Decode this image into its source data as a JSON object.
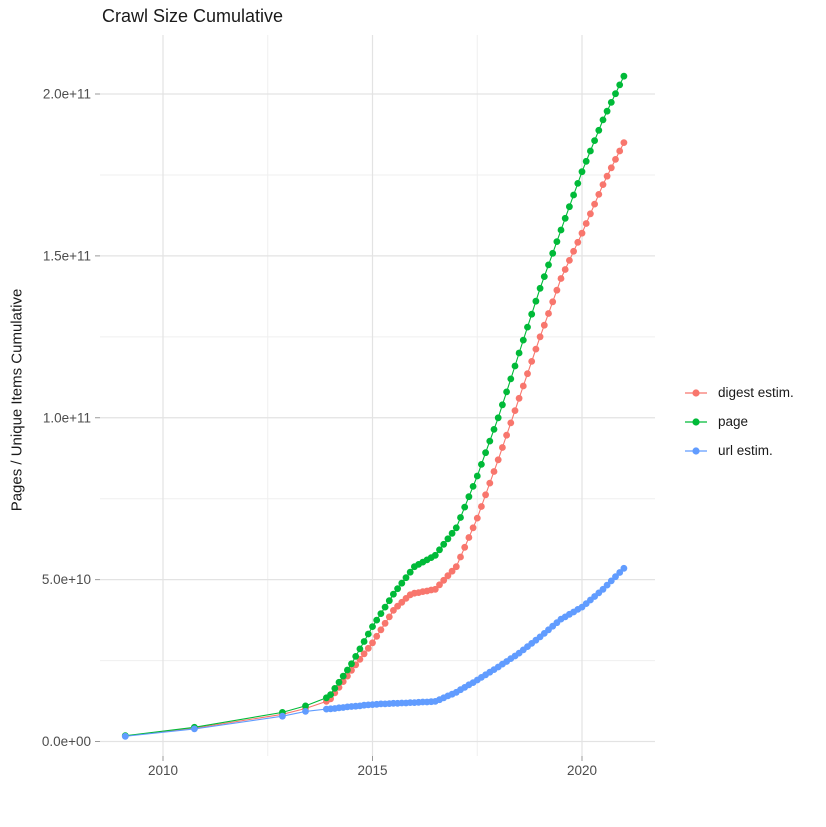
{
  "page": {
    "title": "Crawl Size Cumulative"
  },
  "chart_data": {
    "type": "line",
    "title": "Crawl Size Cumulative",
    "xlabel": "",
    "ylabel": "Pages / Unique Items Cumulative",
    "value_unit": "items, values in billions (1e9)",
    "xlim": [
      2008.5,
      2021.75
    ],
    "ylim_e9": [
      -4.5,
      218
    ],
    "grid": true,
    "legend_position": "right",
    "colors": {
      "background": "#ffffff",
      "grid_major": "#e3e3e3",
      "grid_minor": "#efefef",
      "tick": "#999999",
      "tick_label": "#4d4d4d",
      "text": "#1a1a1a"
    },
    "xticks": {
      "major": [
        {
          "v": 2010,
          "label": "2010"
        },
        {
          "v": 2015,
          "label": "2015"
        },
        {
          "v": 2020,
          "label": "2020"
        }
      ],
      "minor": [
        2012.5,
        2017.5
      ]
    },
    "yticks": {
      "major": [
        {
          "v": 0,
          "label": "0.0e+00"
        },
        {
          "v": 50,
          "label": "5.0e+10"
        },
        {
          "v": 100,
          "label": "1.0e+11"
        },
        {
          "v": 150,
          "label": "1.5e+11"
        },
        {
          "v": 200,
          "label": "2.0e+11"
        }
      ],
      "minor": [
        25,
        75,
        125,
        175
      ]
    },
    "series": [
      {
        "name": "digest estim.",
        "color": "#F8766D",
        "points": [
          [
            2009.1,
            1.7
          ],
          [
            2010.75,
            4.1
          ],
          [
            2012.85,
            8.4
          ],
          [
            2013.4,
            10.2
          ],
          [
            2013.9,
            12.4
          ],
          [
            2014.0,
            13.2
          ],
          [
            2014.1,
            15.0
          ],
          [
            2014.2,
            16.7
          ],
          [
            2014.3,
            18.5
          ],
          [
            2014.4,
            20.2
          ],
          [
            2014.5,
            22.0
          ],
          [
            2014.6,
            23.7
          ],
          [
            2014.7,
            25.4
          ],
          [
            2014.8,
            27.1
          ],
          [
            2014.9,
            28.8
          ],
          [
            2015.0,
            30.5
          ],
          [
            2015.1,
            32.5
          ],
          [
            2015.2,
            34.5
          ],
          [
            2015.3,
            36.5
          ],
          [
            2015.4,
            38.5
          ],
          [
            2015.5,
            40.5
          ],
          [
            2015.6,
            41.8
          ],
          [
            2015.7,
            43.0
          ],
          [
            2015.8,
            44.2
          ],
          [
            2015.9,
            45.3
          ],
          [
            2016.0,
            45.8
          ],
          [
            2016.1,
            46.0
          ],
          [
            2016.2,
            46.3
          ],
          [
            2016.3,
            46.5
          ],
          [
            2016.4,
            46.8
          ],
          [
            2016.5,
            47.0
          ],
          [
            2016.6,
            48.4
          ],
          [
            2016.7,
            49.8
          ],
          [
            2016.8,
            51.2
          ],
          [
            2016.9,
            52.6
          ],
          [
            2017.0,
            54.0
          ],
          [
            2017.1,
            57.0
          ],
          [
            2017.2,
            60.0
          ],
          [
            2017.3,
            63.0
          ],
          [
            2017.4,
            66.0
          ],
          [
            2017.5,
            69.0
          ],
          [
            2017.6,
            72.6
          ],
          [
            2017.7,
            76.2
          ],
          [
            2017.8,
            79.8
          ],
          [
            2017.9,
            83.4
          ],
          [
            2018.0,
            87.0
          ],
          [
            2018.1,
            90.8
          ],
          [
            2018.2,
            94.6
          ],
          [
            2018.3,
            98.4
          ],
          [
            2018.4,
            102.2
          ],
          [
            2018.5,
            106.0
          ],
          [
            2018.6,
            109.8
          ],
          [
            2018.7,
            113.6
          ],
          [
            2018.8,
            117.4
          ],
          [
            2018.9,
            121.2
          ],
          [
            2019.0,
            125.0
          ],
          [
            2019.1,
            128.6
          ],
          [
            2019.2,
            132.2
          ],
          [
            2019.3,
            135.8
          ],
          [
            2019.4,
            139.4
          ],
          [
            2019.5,
            143.0
          ],
          [
            2019.6,
            145.8
          ],
          [
            2019.7,
            148.6
          ],
          [
            2019.8,
            151.4
          ],
          [
            2019.9,
            154.2
          ],
          [
            2020.0,
            157.0
          ],
          [
            2020.1,
            160.0
          ],
          [
            2020.2,
            163.0
          ],
          [
            2020.3,
            166.0
          ],
          [
            2020.4,
            169.0
          ],
          [
            2020.5,
            172.0
          ],
          [
            2020.6,
            174.6
          ],
          [
            2020.7,
            177.2
          ],
          [
            2020.8,
            179.8
          ],
          [
            2020.9,
            182.4
          ],
          [
            2021.0,
            185.0
          ]
        ]
      },
      {
        "name": "page",
        "color": "#00BA38",
        "points": [
          [
            2009.1,
            1.8
          ],
          [
            2010.75,
            4.4
          ],
          [
            2012.85,
            9.0
          ],
          [
            2013.4,
            11.0
          ],
          [
            2013.9,
            13.5
          ],
          [
            2014.0,
            14.5
          ],
          [
            2014.1,
            16.4
          ],
          [
            2014.2,
            18.3
          ],
          [
            2014.3,
            20.2
          ],
          [
            2014.4,
            22.1
          ],
          [
            2014.5,
            24.0
          ],
          [
            2014.6,
            26.3
          ],
          [
            2014.7,
            28.6
          ],
          [
            2014.8,
            30.9
          ],
          [
            2014.9,
            33.2
          ],
          [
            2015.0,
            35.5
          ],
          [
            2015.1,
            37.5
          ],
          [
            2015.2,
            39.5
          ],
          [
            2015.3,
            41.5
          ],
          [
            2015.4,
            43.5
          ],
          [
            2015.5,
            45.5
          ],
          [
            2015.6,
            47.2
          ],
          [
            2015.7,
            48.9
          ],
          [
            2015.8,
            50.6
          ],
          [
            2015.9,
            52.3
          ],
          [
            2016.0,
            54.0
          ],
          [
            2016.1,
            54.7
          ],
          [
            2016.2,
            55.4
          ],
          [
            2016.3,
            56.1
          ],
          [
            2016.4,
            56.8
          ],
          [
            2016.5,
            57.5
          ],
          [
            2016.6,
            59.2
          ],
          [
            2016.7,
            60.9
          ],
          [
            2016.8,
            62.6
          ],
          [
            2016.9,
            64.3
          ],
          [
            2017.0,
            66.0
          ],
          [
            2017.1,
            69.2
          ],
          [
            2017.2,
            72.4
          ],
          [
            2017.3,
            75.6
          ],
          [
            2017.4,
            78.8
          ],
          [
            2017.5,
            82.0
          ],
          [
            2017.6,
            85.6
          ],
          [
            2017.7,
            89.2
          ],
          [
            2017.8,
            92.8
          ],
          [
            2017.9,
            96.4
          ],
          [
            2018.0,
            100.0
          ],
          [
            2018.1,
            104.0
          ],
          [
            2018.2,
            108.0
          ],
          [
            2018.3,
            112.0
          ],
          [
            2018.4,
            116.0
          ],
          [
            2018.5,
            120.0
          ],
          [
            2018.6,
            124.0
          ],
          [
            2018.7,
            128.0
          ],
          [
            2018.8,
            132.0
          ],
          [
            2018.9,
            136.0
          ],
          [
            2019.0,
            140.0
          ],
          [
            2019.1,
            143.6
          ],
          [
            2019.2,
            147.2
          ],
          [
            2019.3,
            150.8
          ],
          [
            2019.4,
            154.4
          ],
          [
            2019.5,
            158.0
          ],
          [
            2019.6,
            161.6
          ],
          [
            2019.7,
            165.2
          ],
          [
            2019.8,
            168.8
          ],
          [
            2019.9,
            172.4
          ],
          [
            2020.0,
            176.0
          ],
          [
            2020.1,
            179.2
          ],
          [
            2020.2,
            182.4
          ],
          [
            2020.3,
            185.6
          ],
          [
            2020.4,
            188.8
          ],
          [
            2020.5,
            192.0
          ],
          [
            2020.6,
            194.7
          ],
          [
            2020.7,
            197.4
          ],
          [
            2020.8,
            200.1
          ],
          [
            2020.9,
            202.8
          ],
          [
            2021.0,
            205.5
          ]
        ]
      },
      {
        "name": "url estim.",
        "color": "#619CFF",
        "points": [
          [
            2009.1,
            1.6
          ],
          [
            2010.75,
            3.9
          ],
          [
            2012.85,
            7.8
          ],
          [
            2013.4,
            9.3
          ],
          [
            2013.9,
            10.0
          ],
          [
            2014.0,
            10.1
          ],
          [
            2014.1,
            10.2
          ],
          [
            2014.2,
            10.4
          ],
          [
            2014.3,
            10.5
          ],
          [
            2014.4,
            10.7
          ],
          [
            2014.5,
            10.8
          ],
          [
            2014.6,
            10.9
          ],
          [
            2014.7,
            11.0
          ],
          [
            2014.8,
            11.2
          ],
          [
            2014.9,
            11.3
          ],
          [
            2015.0,
            11.4
          ],
          [
            2015.1,
            11.5
          ],
          [
            2015.2,
            11.6
          ],
          [
            2015.3,
            11.6
          ],
          [
            2015.4,
            11.7
          ],
          [
            2015.5,
            11.8
          ],
          [
            2015.6,
            11.8
          ],
          [
            2015.7,
            11.9
          ],
          [
            2015.8,
            11.9
          ],
          [
            2015.9,
            12.0
          ],
          [
            2016.0,
            12.0
          ],
          [
            2016.1,
            12.1
          ],
          [
            2016.2,
            12.2
          ],
          [
            2016.3,
            12.2
          ],
          [
            2016.4,
            12.3
          ],
          [
            2016.5,
            12.4
          ],
          [
            2016.6,
            12.9
          ],
          [
            2016.7,
            13.5
          ],
          [
            2016.8,
            14.1
          ],
          [
            2016.9,
            14.6
          ],
          [
            2017.0,
            15.2
          ],
          [
            2017.1,
            16.0
          ],
          [
            2017.2,
            16.7
          ],
          [
            2017.3,
            17.5
          ],
          [
            2017.4,
            18.2
          ],
          [
            2017.5,
            19.0
          ],
          [
            2017.6,
            19.8
          ],
          [
            2017.7,
            20.6
          ],
          [
            2017.8,
            21.4
          ],
          [
            2017.9,
            22.2
          ],
          [
            2018.0,
            23.0
          ],
          [
            2018.1,
            23.9
          ],
          [
            2018.2,
            24.7
          ],
          [
            2018.3,
            25.6
          ],
          [
            2018.4,
            26.4
          ],
          [
            2018.5,
            27.3
          ],
          [
            2018.6,
            28.3
          ],
          [
            2018.7,
            29.3
          ],
          [
            2018.8,
            30.3
          ],
          [
            2018.9,
            31.3
          ],
          [
            2019.0,
            32.3
          ],
          [
            2019.1,
            33.4
          ],
          [
            2019.2,
            34.5
          ],
          [
            2019.3,
            35.6
          ],
          [
            2019.4,
            36.7
          ],
          [
            2019.5,
            37.8
          ],
          [
            2019.6,
            38.5
          ],
          [
            2019.7,
            39.3
          ],
          [
            2019.8,
            40.0
          ],
          [
            2019.9,
            40.8
          ],
          [
            2020.0,
            41.5
          ],
          [
            2020.1,
            42.6
          ],
          [
            2020.2,
            43.7
          ],
          [
            2020.3,
            44.8
          ],
          [
            2020.4,
            45.9
          ],
          [
            2020.5,
            47.0
          ],
          [
            2020.6,
            48.3
          ],
          [
            2020.7,
            49.6
          ],
          [
            2020.8,
            50.9
          ],
          [
            2020.9,
            52.2
          ],
          [
            2021.0,
            53.5
          ]
        ]
      }
    ]
  }
}
